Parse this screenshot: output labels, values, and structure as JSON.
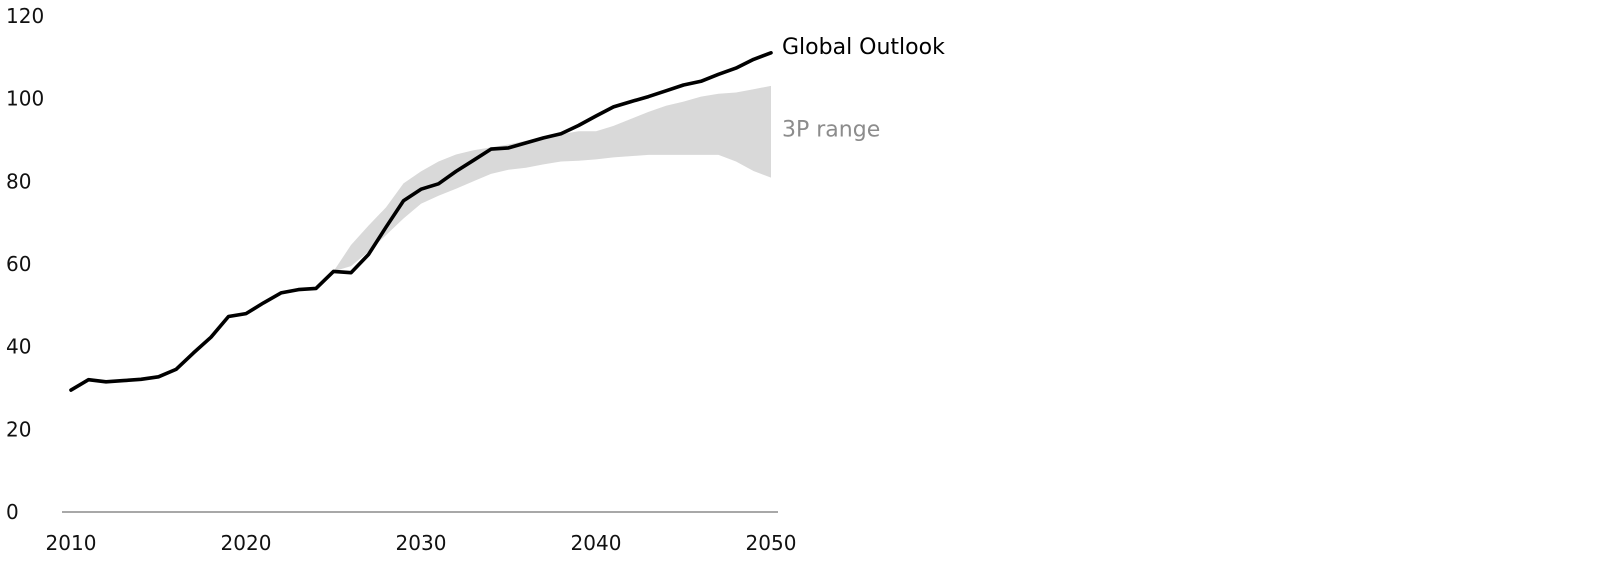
{
  "chart_data": {
    "type": "line",
    "x_ticks": [
      "2010",
      "2020",
      "2030",
      "2040",
      "2050"
    ],
    "y_ticks": [
      "0",
      "20",
      "40",
      "60",
      "80",
      "100",
      "120"
    ],
    "xlim": [
      2010,
      2050
    ],
    "ylim": [
      0,
      120
    ],
    "grid": false,
    "series": [
      {
        "name": "Global Outlook",
        "color": "#000000",
        "x": [
          2010,
          2011,
          2012,
          2013,
          2014,
          2015,
          2016,
          2017,
          2018,
          2019,
          2020,
          2021,
          2022,
          2023,
          2024,
          2025,
          2026,
          2027,
          2028,
          2029,
          2030,
          2031,
          2032,
          2033,
          2034,
          2035,
          2036,
          2037,
          2038,
          2039,
          2040,
          2041,
          2042,
          2043,
          2044,
          2045,
          2046,
          2047,
          2048,
          2049,
          2050
        ],
        "y": [
          29.5,
          32.0,
          31.5,
          31.8,
          32.1,
          32.7,
          34.5,
          38.5,
          42.3,
          47.3,
          48.0,
          50.6,
          53.0,
          53.8,
          54.1,
          58.2,
          57.9,
          62.3,
          68.9,
          75.3,
          78.1,
          79.4,
          82.4,
          85.1,
          87.8,
          88.1,
          89.3,
          90.5,
          91.5,
          93.5,
          95.8,
          98.0,
          99.3,
          100.5,
          101.9,
          103.3,
          104.2,
          105.9,
          107.4,
          109.5,
          111.1
        ]
      }
    ],
    "bands": [
      {
        "name": "3P range",
        "color": "#d9d9d9",
        "label_color": "#8c8c8c",
        "x": [
          2025,
          2026,
          2027,
          2028,
          2029,
          2030,
          2031,
          2032,
          2033,
          2034,
          2035,
          2036,
          2037,
          2038,
          2039,
          2040,
          2041,
          2042,
          2043,
          2044,
          2045,
          2046,
          2047,
          2048,
          2049,
          2050
        ],
        "lower": [
          58.2,
          59.5,
          63.0,
          67.0,
          71.0,
          74.6,
          76.5,
          78.2,
          80.0,
          81.8,
          82.8,
          83.3,
          84.1,
          84.8,
          85.0,
          85.3,
          85.8,
          86.1,
          86.4,
          86.4,
          86.4,
          86.4,
          86.4,
          84.8,
          82.5,
          80.9
        ],
        "upper": [
          58.2,
          64.6,
          69.3,
          73.7,
          79.5,
          82.4,
          84.8,
          86.5,
          87.5,
          88.2,
          88.9,
          89.8,
          90.6,
          91.4,
          92.1,
          92.1,
          93.4,
          95.1,
          96.8,
          98.3,
          99.3,
          100.5,
          101.2,
          101.5,
          102.3,
          103.1
        ]
      }
    ]
  }
}
